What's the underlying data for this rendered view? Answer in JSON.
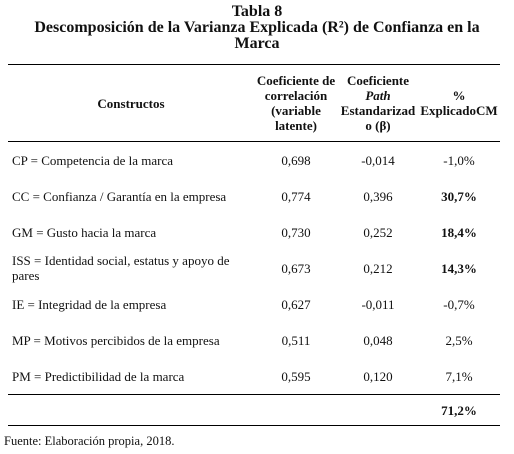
{
  "header": {
    "title": "Tabla 8",
    "subtitle": "Descomposición de la Varianza Explicada (R²) de Confianza en la Marca"
  },
  "table": {
    "columns": [
      "Constructos",
      "Coeficiente de correlación (variable latente)",
      [
        "Coeficiente",
        "Path",
        "Estandarizado (β)"
      ],
      "% ExplicadoCM"
    ],
    "rows": [
      [
        "CP = Competencia de la marca",
        "0,698",
        "-0,014",
        "-1,0%"
      ],
      [
        "CC = Confianza / Garantía en la empresa",
        "0,774",
        "0,396",
        "30,7%"
      ],
      [
        "GM = Gusto hacia la marca",
        "0,730",
        "0,252",
        "18,4%"
      ],
      [
        "ISS = Identidad social, estatus y apoyo de pares",
        "0,673",
        "0,212",
        "14,3%"
      ],
      [
        "IE = Integridad de la empresa",
        "0,627",
        "-0,011",
        "-0,7%"
      ],
      [
        "MP = Motivos percibidos de la empresa",
        "0,511",
        "0,048",
        "2,5%"
      ],
      [
        "PM = Predictibilidad de la marca",
        "0,595",
        "0,120",
        "7,1%"
      ]
    ],
    "bold_rows": [
      false,
      true,
      true,
      true,
      false,
      false,
      false
    ],
    "total": "71,2%"
  },
  "footer": {
    "source": "Fuente: Elaboración propia, 2018."
  }
}
